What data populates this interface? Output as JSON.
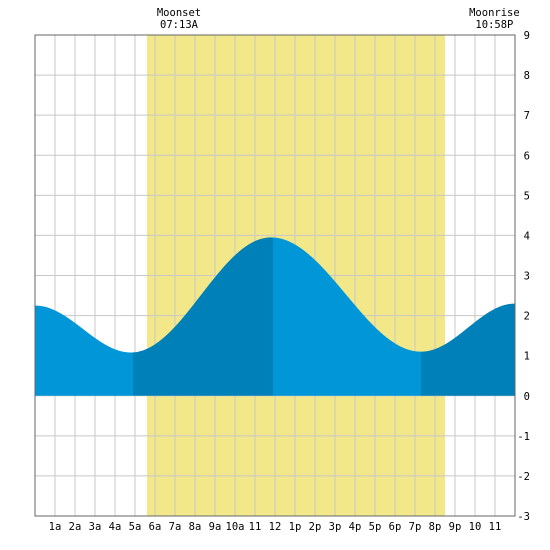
{
  "chart_data": {
    "type": "area",
    "title": "",
    "xlabel": "",
    "ylabel": "",
    "xlim": [
      0,
      24
    ],
    "ylim": [
      -3,
      9
    ],
    "grid": true,
    "x_ticks": [
      {
        "x": 1,
        "label": "1a"
      },
      {
        "x": 2,
        "label": "2a"
      },
      {
        "x": 3,
        "label": "3a"
      },
      {
        "x": 4,
        "label": "4a"
      },
      {
        "x": 5,
        "label": "5a"
      },
      {
        "x": 6,
        "label": "6a"
      },
      {
        "x": 7,
        "label": "7a"
      },
      {
        "x": 8,
        "label": "8a"
      },
      {
        "x": 9,
        "label": "9a"
      },
      {
        "x": 10,
        "label": "10a"
      },
      {
        "x": 11,
        "label": "11"
      },
      {
        "x": 12,
        "label": "12"
      },
      {
        "x": 13,
        "label": "1p"
      },
      {
        "x": 14,
        "label": "2p"
      },
      {
        "x": 15,
        "label": "3p"
      },
      {
        "x": 16,
        "label": "4p"
      },
      {
        "x": 17,
        "label": "5p"
      },
      {
        "x": 18,
        "label": "6p"
      },
      {
        "x": 19,
        "label": "7p"
      },
      {
        "x": 20,
        "label": "8p"
      },
      {
        "x": 21,
        "label": "9p"
      },
      {
        "x": 22,
        "label": "10"
      },
      {
        "x": 23,
        "label": "11"
      }
    ],
    "y_ticks": [
      {
        "y": 9,
        "label": "9"
      },
      {
        "y": 8,
        "label": "8"
      },
      {
        "y": 7,
        "label": "7"
      },
      {
        "y": 6,
        "label": "6"
      },
      {
        "y": 5,
        "label": "5"
      },
      {
        "y": 4,
        "label": "4"
      },
      {
        "y": 3,
        "label": "3"
      },
      {
        "y": 2,
        "label": "2"
      },
      {
        "y": 1,
        "label": "1"
      },
      {
        "y": 0,
        "label": "0"
      },
      {
        "y": -1,
        "label": "-1"
      },
      {
        "y": -2,
        "label": "-2"
      },
      {
        "y": -3,
        "label": "-3"
      }
    ],
    "daylight": {
      "start": 5.6,
      "end": 20.5
    },
    "extrema": [
      {
        "x": 0.0,
        "y": 2.25
      },
      {
        "x": 4.8,
        "y": 1.08
      },
      {
        "x": 11.8,
        "y": 3.95
      },
      {
        "x": 19.3,
        "y": 1.1
      },
      {
        "x": 24.0,
        "y": 2.3
      }
    ],
    "phases": [
      {
        "start": 0.0,
        "end": 4.9,
        "kind": "falling"
      },
      {
        "start": 4.9,
        "end": 11.9,
        "kind": "rising"
      },
      {
        "start": 11.9,
        "end": 19.3,
        "kind": "falling"
      },
      {
        "start": 19.3,
        "end": 24.0,
        "kind": "rising"
      }
    ],
    "annotations": [
      {
        "x": 7.2,
        "title": "Moonset",
        "time": "07:13A"
      },
      {
        "x": 22.97,
        "title": "Moonrise",
        "time": "10:58P"
      }
    ],
    "colors": {
      "daylight": "#f2e88a",
      "falling": "#0096d8",
      "rising": "#0080b8",
      "grid": "#c8c8c8",
      "frame": "#666666"
    }
  }
}
